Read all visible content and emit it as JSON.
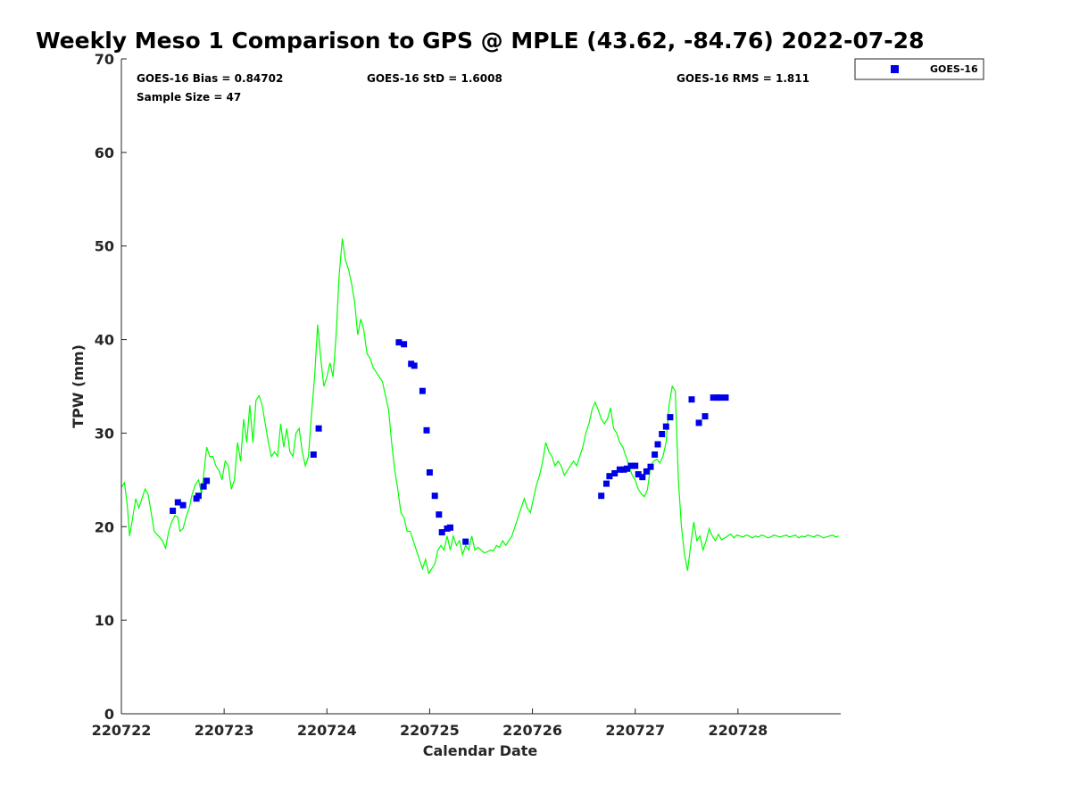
{
  "chart_data": {
    "type": "line",
    "title": "Weekly Meso 1 Comparison to GPS @ MPLE (43.62, -84.76) 2022-07-28",
    "xlabel": "Calendar Date",
    "ylabel": "TPW (mm)",
    "xlim": [
      0,
      7
    ],
    "ylim": [
      0,
      70
    ],
    "xticks": [
      0,
      1,
      2,
      3,
      4,
      5,
      6
    ],
    "xtick_labels": [
      "220722",
      "220723",
      "220724",
      "220725",
      "220726",
      "220727",
      "220728"
    ],
    "yticks": [
      0,
      10,
      20,
      30,
      40,
      50,
      60,
      70
    ],
    "ytick_labels": [
      "0",
      "10",
      "20",
      "30",
      "40",
      "50",
      "60",
      "70"
    ],
    "stats": {
      "bias": "GOES-16 Bias = 0.84702",
      "std": "GOES-16 StD = 1.6008",
      "rms": "GOES-16 RMS = 1.811",
      "n": "Sample Size = 47"
    },
    "legend": {
      "label": "GOES-16",
      "position": "outside top-right"
    },
    "series": [
      {
        "name": "GPS",
        "style": "line",
        "color": "#00ff00",
        "points": [
          [
            0.0,
            24.2
          ],
          [
            0.03,
            24.7
          ],
          [
            0.06,
            22.0
          ],
          [
            0.08,
            19.0
          ],
          [
            0.11,
            21.0
          ],
          [
            0.14,
            23.0
          ],
          [
            0.17,
            22.0
          ],
          [
            0.2,
            23.0
          ],
          [
            0.23,
            24.0
          ],
          [
            0.26,
            23.5
          ],
          [
            0.29,
            21.5
          ],
          [
            0.32,
            19.5
          ],
          [
            0.36,
            19.0
          ],
          [
            0.4,
            18.5
          ],
          [
            0.43,
            17.7
          ],
          [
            0.46,
            19.5
          ],
          [
            0.49,
            20.5
          ],
          [
            0.52,
            21.2
          ],
          [
            0.55,
            21.0
          ],
          [
            0.57,
            19.5
          ],
          [
            0.6,
            19.8
          ],
          [
            0.63,
            21.0
          ],
          [
            0.66,
            22.0
          ],
          [
            0.69,
            23.5
          ],
          [
            0.72,
            24.5
          ],
          [
            0.75,
            25.0
          ],
          [
            0.78,
            23.5
          ],
          [
            0.81,
            26.5
          ],
          [
            0.83,
            28.5
          ],
          [
            0.86,
            27.5
          ],
          [
            0.89,
            27.5
          ],
          [
            0.92,
            26.5
          ],
          [
            0.95,
            26.0
          ],
          [
            0.98,
            25.0
          ],
          [
            1.01,
            27.0
          ],
          [
            1.04,
            26.5
          ],
          [
            1.07,
            24.0
          ],
          [
            1.1,
            25.0
          ],
          [
            1.13,
            29.0
          ],
          [
            1.16,
            27.0
          ],
          [
            1.19,
            31.5
          ],
          [
            1.22,
            29.0
          ],
          [
            1.25,
            33.0
          ],
          [
            1.28,
            29.0
          ],
          [
            1.31,
            33.5
          ],
          [
            1.34,
            34.0
          ],
          [
            1.37,
            33.0
          ],
          [
            1.4,
            31.0
          ],
          [
            1.43,
            29.0
          ],
          [
            1.46,
            27.5
          ],
          [
            1.49,
            28.0
          ],
          [
            1.52,
            27.5
          ],
          [
            1.55,
            31.0
          ],
          [
            1.58,
            28.5
          ],
          [
            1.61,
            30.5
          ],
          [
            1.64,
            28.0
          ],
          [
            1.67,
            27.5
          ],
          [
            1.7,
            30.0
          ],
          [
            1.73,
            30.5
          ],
          [
            1.76,
            28.0
          ],
          [
            1.79,
            26.5
          ],
          [
            1.82,
            27.5
          ],
          [
            1.85,
            32.0
          ],
          [
            1.88,
            36.0
          ],
          [
            1.91,
            41.6
          ],
          [
            1.94,
            38.0
          ],
          [
            1.97,
            35.0
          ],
          [
            2.0,
            36.0
          ],
          [
            2.03,
            37.5
          ],
          [
            2.06,
            36.0
          ],
          [
            2.09,
            40.5
          ],
          [
            2.12,
            47.0
          ],
          [
            2.15,
            50.8
          ],
          [
            2.18,
            48.5
          ],
          [
            2.21,
            47.5
          ],
          [
            2.24,
            46.0
          ],
          [
            2.27,
            44.0
          ],
          [
            2.3,
            40.5
          ],
          [
            2.33,
            42.2
          ],
          [
            2.36,
            41.0
          ],
          [
            2.39,
            38.5
          ],
          [
            2.42,
            38.0
          ],
          [
            2.45,
            37.0
          ],
          [
            2.48,
            36.5
          ],
          [
            2.51,
            36.0
          ],
          [
            2.54,
            35.5
          ],
          [
            2.57,
            34.0
          ],
          [
            2.6,
            32.5
          ],
          [
            2.63,
            29.0
          ],
          [
            2.66,
            26.0
          ],
          [
            2.69,
            24.0
          ],
          [
            2.72,
            21.5
          ],
          [
            2.75,
            21.0
          ],
          [
            2.78,
            19.5
          ],
          [
            2.81,
            19.5
          ],
          [
            2.84,
            18.5
          ],
          [
            2.87,
            17.5
          ],
          [
            2.9,
            16.5
          ],
          [
            2.93,
            15.5
          ],
          [
            2.96,
            16.5
          ],
          [
            2.99,
            15.0
          ],
          [
            3.02,
            15.5
          ],
          [
            3.05,
            16.0
          ],
          [
            3.08,
            17.5
          ],
          [
            3.11,
            18.0
          ],
          [
            3.14,
            17.5
          ],
          [
            3.17,
            19.0
          ],
          [
            3.2,
            17.5
          ],
          [
            3.23,
            19.0
          ],
          [
            3.26,
            18.0
          ],
          [
            3.29,
            18.5
          ],
          [
            3.32,
            17.0
          ],
          [
            3.35,
            18.0
          ],
          [
            3.38,
            17.5
          ],
          [
            3.41,
            19.0
          ],
          [
            3.44,
            17.5
          ],
          [
            3.47,
            17.8
          ],
          [
            3.5,
            17.5
          ],
          [
            3.53,
            17.2
          ],
          [
            3.56,
            17.3
          ],
          [
            3.59,
            17.5
          ],
          [
            3.62,
            17.4
          ],
          [
            3.65,
            18.0
          ],
          [
            3.68,
            17.8
          ],
          [
            3.71,
            18.5
          ],
          [
            3.74,
            18.0
          ],
          [
            3.77,
            18.5
          ],
          [
            3.8,
            19.0
          ],
          [
            3.83,
            20.0
          ],
          [
            3.86,
            21.0
          ],
          [
            3.89,
            22.0
          ],
          [
            3.92,
            23.0
          ],
          [
            3.95,
            22.0
          ],
          [
            3.98,
            21.5
          ],
          [
            4.01,
            23.0
          ],
          [
            4.04,
            24.5
          ],
          [
            4.07,
            25.5
          ],
          [
            4.1,
            27.0
          ],
          [
            4.13,
            29.0
          ],
          [
            4.16,
            28.0
          ],
          [
            4.19,
            27.5
          ],
          [
            4.22,
            26.5
          ],
          [
            4.25,
            27.0
          ],
          [
            4.28,
            26.5
          ],
          [
            4.31,
            25.5
          ],
          [
            4.34,
            26.0
          ],
          [
            4.37,
            26.5
          ],
          [
            4.4,
            27.0
          ],
          [
            4.43,
            26.5
          ],
          [
            4.46,
            27.5
          ],
          [
            4.49,
            28.5
          ],
          [
            4.52,
            30.0
          ],
          [
            4.55,
            31.0
          ],
          [
            4.58,
            32.5
          ],
          [
            4.61,
            33.3
          ],
          [
            4.64,
            32.5
          ],
          [
            4.67,
            31.5
          ],
          [
            4.7,
            31.0
          ],
          [
            4.73,
            31.5
          ],
          [
            4.76,
            32.7
          ],
          [
            4.79,
            30.5
          ],
          [
            4.82,
            30.0
          ],
          [
            4.85,
            29.0
          ],
          [
            4.88,
            28.5
          ],
          [
            4.91,
            27.5
          ],
          [
            4.94,
            26.5
          ],
          [
            4.97,
            25.5
          ],
          [
            5.0,
            25.0
          ],
          [
            5.03,
            24.0
          ],
          [
            5.06,
            23.5
          ],
          [
            5.09,
            23.2
          ],
          [
            5.12,
            24.0
          ],
          [
            5.15,
            26.5
          ],
          [
            5.18,
            27.0
          ],
          [
            5.21,
            27.2
          ],
          [
            5.24,
            26.8
          ],
          [
            5.27,
            27.5
          ],
          [
            5.3,
            29.0
          ],
          [
            5.33,
            33.0
          ],
          [
            5.36,
            35.0
          ],
          [
            5.39,
            34.5
          ],
          [
            5.42,
            25.0
          ],
          [
            5.45,
            20.0
          ],
          [
            5.48,
            17.0
          ],
          [
            5.51,
            15.3
          ],
          [
            5.54,
            18.0
          ],
          [
            5.57,
            20.5
          ],
          [
            5.6,
            18.5
          ],
          [
            5.63,
            19.0
          ],
          [
            5.66,
            17.5
          ],
          [
            5.69,
            18.5
          ],
          [
            5.72,
            19.8
          ],
          [
            5.75,
            19.0
          ],
          [
            5.78,
            18.5
          ],
          [
            5.81,
            19.2
          ],
          [
            5.84,
            18.6
          ],
          [
            5.87,
            18.8
          ],
          [
            5.9,
            19.0
          ],
          [
            5.93,
            19.2
          ],
          [
            5.96,
            18.8
          ],
          [
            5.99,
            19.1
          ],
          [
            6.02,
            19.0
          ],
          [
            6.05,
            18.9
          ],
          [
            6.08,
            19.1
          ],
          [
            6.11,
            19.0
          ],
          [
            6.14,
            18.8
          ],
          [
            6.17,
            19.0
          ],
          [
            6.2,
            18.9
          ],
          [
            6.23,
            19.1
          ],
          [
            6.26,
            19.0
          ],
          [
            6.29,
            18.8
          ],
          [
            6.32,
            18.9
          ],
          [
            6.35,
            19.1
          ],
          [
            6.38,
            19.0
          ],
          [
            6.41,
            18.9
          ],
          [
            6.44,
            19.0
          ],
          [
            6.47,
            19.1
          ],
          [
            6.5,
            18.9
          ],
          [
            6.53,
            19.0
          ],
          [
            6.56,
            19.1
          ],
          [
            6.59,
            18.8
          ],
          [
            6.62,
            19.0
          ],
          [
            6.65,
            18.9
          ],
          [
            6.68,
            19.1
          ],
          [
            6.71,
            19.0
          ],
          [
            6.74,
            18.9
          ],
          [
            6.77,
            19.1
          ],
          [
            6.8,
            19.0
          ],
          [
            6.83,
            18.8
          ],
          [
            6.86,
            18.9
          ],
          [
            6.89,
            19.0
          ],
          [
            6.92,
            19.1
          ],
          [
            6.95,
            18.9
          ],
          [
            6.98,
            19.0
          ]
        ]
      },
      {
        "name": "GOES-16",
        "style": "marker",
        "color": "#0000e6",
        "points": [
          [
            0.5,
            21.7
          ],
          [
            0.55,
            22.6
          ],
          [
            0.6,
            22.3
          ],
          [
            0.73,
            23.0
          ],
          [
            0.75,
            23.3
          ],
          [
            0.8,
            24.3
          ],
          [
            0.83,
            24.9
          ],
          [
            1.87,
            27.7
          ],
          [
            1.92,
            30.5
          ],
          [
            2.7,
            39.7
          ],
          [
            2.75,
            39.5
          ],
          [
            2.82,
            37.4
          ],
          [
            2.85,
            37.2
          ],
          [
            2.93,
            34.5
          ],
          [
            2.97,
            30.3
          ],
          [
            3.0,
            25.8
          ],
          [
            3.05,
            23.3
          ],
          [
            3.09,
            21.3
          ],
          [
            3.12,
            19.4
          ],
          [
            3.17,
            19.8
          ],
          [
            3.2,
            19.9
          ],
          [
            3.35,
            18.4
          ],
          [
            4.67,
            23.3
          ],
          [
            4.72,
            24.6
          ],
          [
            4.75,
            25.4
          ],
          [
            4.8,
            25.7
          ],
          [
            4.85,
            26.1
          ],
          [
            4.89,
            26.1
          ],
          [
            4.92,
            26.2
          ],
          [
            4.96,
            26.5
          ],
          [
            5.0,
            26.5
          ],
          [
            5.03,
            25.6
          ],
          [
            5.07,
            25.3
          ],
          [
            5.11,
            25.9
          ],
          [
            5.15,
            26.4
          ],
          [
            5.19,
            27.7
          ],
          [
            5.22,
            28.8
          ],
          [
            5.26,
            29.9
          ],
          [
            5.3,
            30.7
          ],
          [
            5.34,
            31.7
          ],
          [
            5.55,
            33.6
          ],
          [
            5.62,
            31.1
          ],
          [
            5.68,
            31.8
          ],
          [
            5.76,
            33.8
          ],
          [
            5.8,
            33.8
          ],
          [
            5.83,
            33.8
          ],
          [
            5.88,
            33.8
          ]
        ]
      }
    ]
  }
}
